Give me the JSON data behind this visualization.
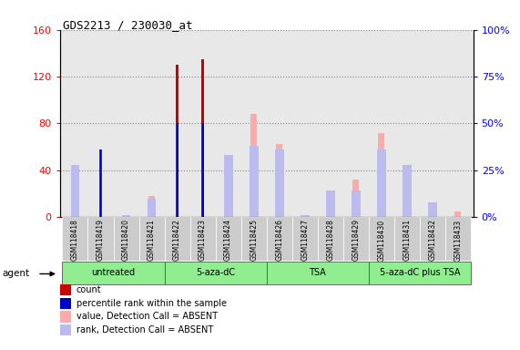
{
  "title": "GDS2213 / 230030_at",
  "samples": [
    "GSM118418",
    "GSM118419",
    "GSM118420",
    "GSM118421",
    "GSM118422",
    "GSM118423",
    "GSM118424",
    "GSM118425",
    "GSM118426",
    "GSM118427",
    "GSM118428",
    "GSM118429",
    "GSM118430",
    "GSM118431",
    "GSM118432",
    "GSM118433"
  ],
  "count": [
    0,
    58,
    0,
    0,
    130,
    135,
    0,
    0,
    0,
    0,
    0,
    0,
    0,
    0,
    0,
    0
  ],
  "percentile_rank": [
    0,
    36,
    0,
    0,
    50,
    50,
    0,
    0,
    0,
    0,
    0,
    0,
    0,
    0,
    0,
    0
  ],
  "value_absent": [
    44,
    0,
    0,
    18,
    0,
    0,
    48,
    88,
    62,
    0,
    0,
    32,
    72,
    35,
    10,
    5
  ],
  "rank_absent": [
    28,
    0,
    1,
    10,
    0,
    0,
    33,
    38,
    36,
    1,
    14,
    14,
    36,
    28,
    8,
    0
  ],
  "groups": [
    {
      "label": "untreated",
      "start": 0,
      "end": 3
    },
    {
      "label": "5-aza-dC",
      "start": 4,
      "end": 7
    },
    {
      "label": "TSA",
      "start": 8,
      "end": 11
    },
    {
      "label": "5-aza-dC plus TSA",
      "start": 12,
      "end": 15
    }
  ],
  "ylim_left": [
    0,
    160
  ],
  "ylim_right": [
    0,
    100
  ],
  "yticks_left": [
    0,
    40,
    80,
    120,
    160
  ],
  "yticks_right": [
    0,
    25,
    50,
    75,
    100
  ],
  "color_count": "#cc0000",
  "color_rank": "#0000cc",
  "color_value_absent": "#ffaaaa",
  "color_rank_absent": "#bbbbee",
  "group_bg": "#90ee90",
  "plot_bg": "#e8e8e8",
  "sample_box_bg": "#cccccc"
}
